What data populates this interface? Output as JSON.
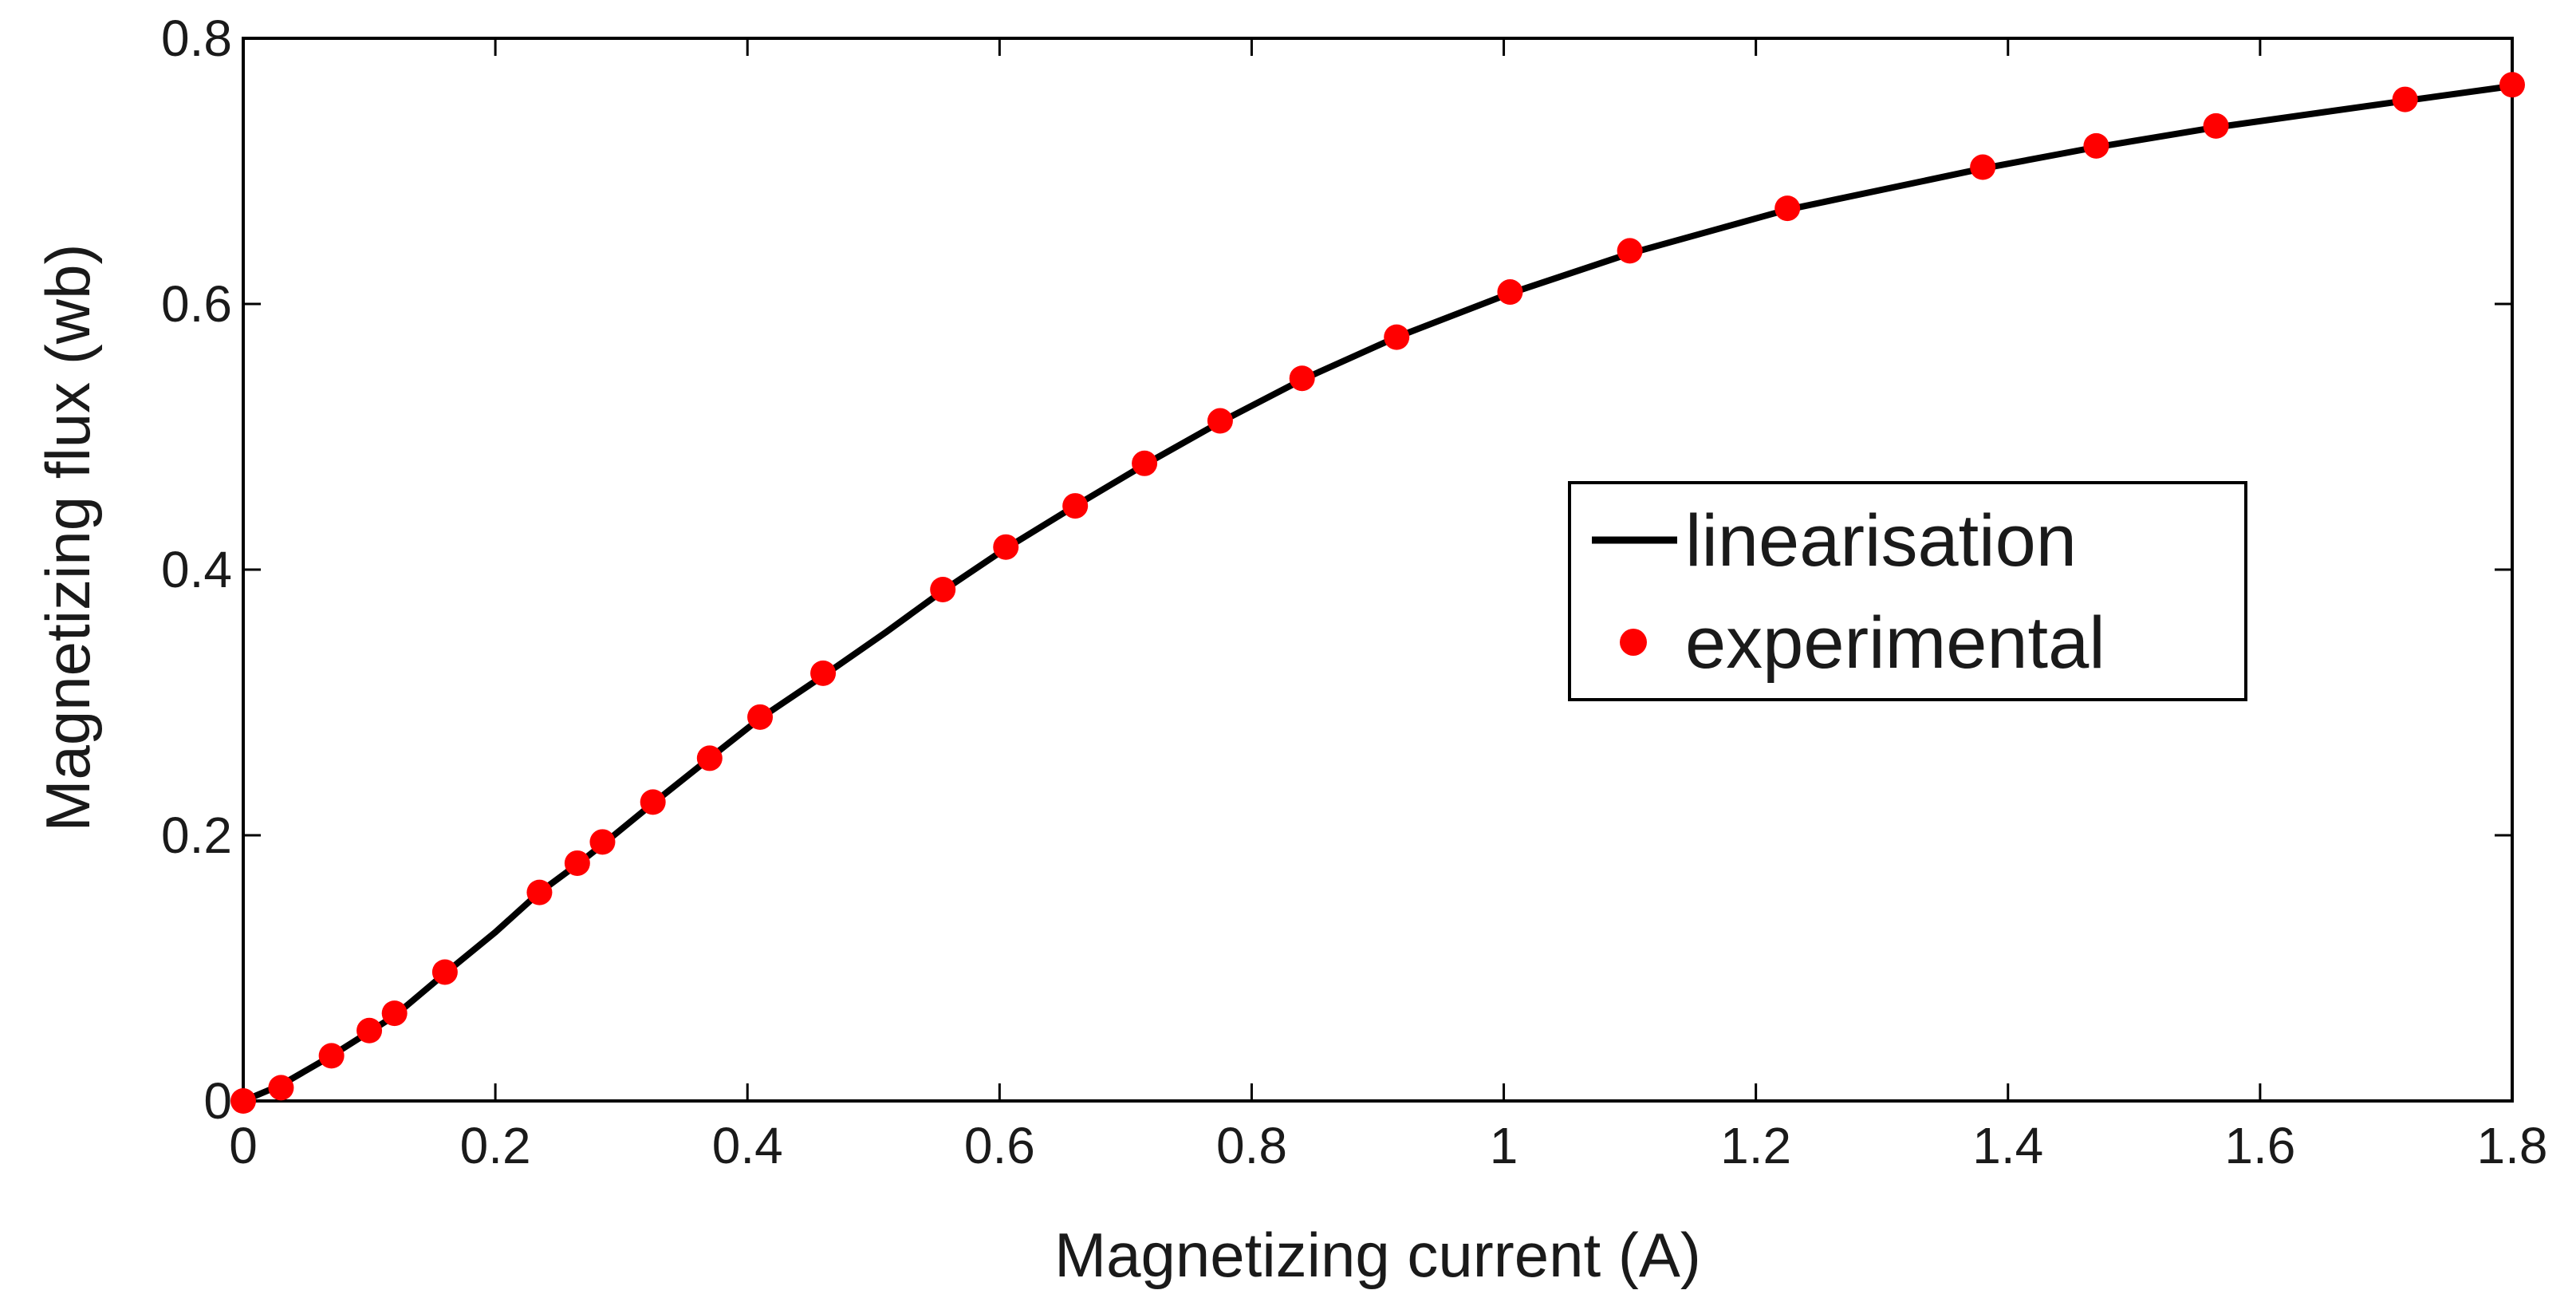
{
  "chart_data": {
    "type": "line",
    "title": "",
    "xlabel": "Magnetizing current (A)",
    "ylabel": "Magnetizing flux (wb)",
    "xlim": [
      0,
      1.8
    ],
    "ylim": [
      0,
      0.8
    ],
    "grid": false,
    "legend_position": "center-right",
    "xticks": [
      0,
      0.2,
      0.4,
      0.6,
      0.8,
      1,
      1.2,
      1.4,
      1.6,
      1.8
    ],
    "xtick_labels": [
      "0",
      "0.2",
      "0.4",
      "0.6",
      "0.8",
      "1",
      "1.2",
      "1.4",
      "1.6",
      "1.8"
    ],
    "yticks": [
      0,
      0.2,
      0.4,
      0.6,
      0.8
    ],
    "ytick_labels": [
      "0",
      "0.2",
      "0.4",
      "0.6",
      "0.8"
    ],
    "series": [
      {
        "name": "linearisation",
        "style": "line",
        "color": "#000000",
        "x": [
          0,
          0.03,
          0.07,
          0.1,
          0.12,
          0.16,
          0.2,
          0.235,
          0.265,
          0.285,
          0.325,
          0.37,
          0.41,
          0.46,
          0.51,
          0.555,
          0.605,
          0.66,
          0.715,
          0.775,
          0.84,
          0.915,
          1.005,
          1.1,
          1.225,
          1.38,
          1.47,
          1.565,
          1.715,
          1.8
        ],
        "y": [
          0,
          0.012,
          0.034,
          0.052,
          0.064,
          0.096,
          0.127,
          0.157,
          0.178,
          0.193,
          0.224,
          0.258,
          0.288,
          0.32,
          0.353,
          0.384,
          0.416,
          0.448,
          0.479,
          0.511,
          0.543,
          0.575,
          0.608,
          0.638,
          0.671,
          0.702,
          0.718,
          0.733,
          0.753,
          0.764
        ]
      },
      {
        "name": "experimental",
        "style": "marker",
        "color": "#ff0000",
        "x": [
          0,
          0.03,
          0.07,
          0.1,
          0.12,
          0.16,
          0.235,
          0.265,
          0.285,
          0.325,
          0.37,
          0.41,
          0.46,
          0.555,
          0.605,
          0.66,
          0.715,
          0.775,
          0.84,
          0.915,
          1.005,
          1.1,
          1.225,
          1.38,
          1.47,
          1.565,
          1.715,
          1.8
        ],
        "y": [
          0,
          0.01,
          0.034,
          0.053,
          0.066,
          0.097,
          0.157,
          0.179,
          0.195,
          0.225,
          0.258,
          0.289,
          0.322,
          0.385,
          0.417,
          0.448,
          0.48,
          0.512,
          0.544,
          0.575,
          0.609,
          0.64,
          0.672,
          0.703,
          0.719,
          0.734,
          0.754,
          0.765
        ]
      }
    ]
  }
}
